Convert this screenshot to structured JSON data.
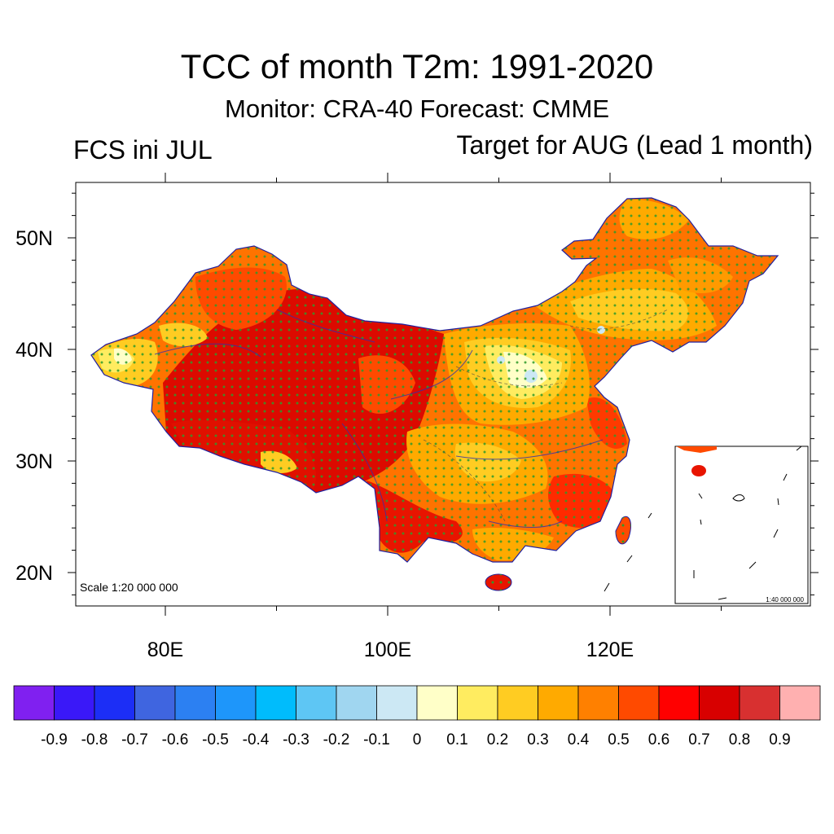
{
  "title": "TCC of month T2m: 1991-2020",
  "subtitle": "Monitor: CRA-40   Forecast: CMME",
  "left_label": "FCS ini JUL",
  "right_label": "Target for AUG (Lead 1 month)",
  "map": {
    "lat_ticks": [
      {
        "value": 50,
        "label": "50N"
      },
      {
        "value": 40,
        "label": "40N"
      },
      {
        "value": 30,
        "label": "30N"
      },
      {
        "value": 20,
        "label": "20N"
      }
    ],
    "lon_ticks": [
      {
        "value": 80,
        "label": "80E"
      },
      {
        "value": 100,
        "label": "100E"
      },
      {
        "value": 120,
        "label": "120E"
      }
    ],
    "lon_range": [
      72,
      138
    ],
    "lat_range": [
      17,
      55
    ],
    "scale_label": "Scale 1:20 000 000",
    "inset_scale_label": "1:40 000 000",
    "stippling": "green dots mark significant areas"
  },
  "colorbar": {
    "labels": [
      "-0.9",
      "-0.8",
      "-0.7",
      "-0.6",
      "-0.5",
      "-0.4",
      "-0.3",
      "-0.2",
      "-0.1",
      "0",
      "0.1",
      "0.2",
      "0.3",
      "0.4",
      "0.5",
      "0.6",
      "0.7",
      "0.8",
      "0.9"
    ],
    "colors": [
      "#8020f0",
      "#3a18f8",
      "#1c2ef6",
      "#3f65e0",
      "#2c80f2",
      "#1e96fa",
      "#00bcfc",
      "#5ec6f4",
      "#a0d6f0",
      "#cce8f4",
      "#ffffc8",
      "#ffec60",
      "#ffcc22",
      "#ffaa00",
      "#ff8000",
      "#ff4a00",
      "#ff0000",
      "#d80000",
      "#d83030",
      "#ffb0b0"
    ]
  }
}
